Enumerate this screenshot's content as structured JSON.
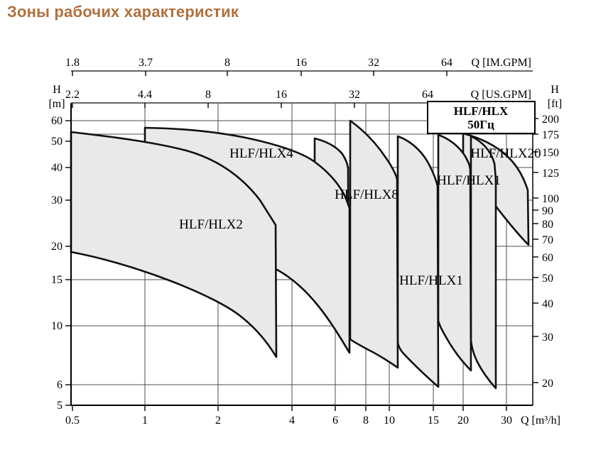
{
  "page_title": "Зоны рабочих характеристик",
  "chart_data": {
    "type": "area",
    "title": "HLF/HLX 50Гц",
    "grid": true,
    "x_axis_bottom": {
      "label": "Q [m³/h]",
      "scale": "log",
      "ticks": [
        "0.5",
        "1",
        "2",
        "4",
        "6",
        "8",
        "10",
        "15",
        "20",
        "30"
      ],
      "range": [
        0.5,
        38
      ]
    },
    "x_axis_top_imperial": {
      "label": "Q [IM.GPM]",
      "ticks": [
        "1.8",
        "3.7",
        "8",
        "16",
        "32",
        "64"
      ]
    },
    "x_axis_top_us": {
      "label": "Q [US.GPM]",
      "ticks": [
        "2.2",
        "4.4",
        "8",
        "16",
        "32",
        "64"
      ]
    },
    "y_axis_left": {
      "label_line1": "H",
      "label_line2": "[m]",
      "scale": "log",
      "ticks": [
        "60",
        "50",
        "40",
        "30",
        "20",
        "15",
        "10",
        "6",
        "5"
      ],
      "range": [
        5,
        65
      ]
    },
    "y_axis_right": {
      "label_line1": "H",
      "label_line2": "[ft]",
      "ticks": [
        "200",
        "175",
        "150",
        "125",
        "100",
        "90",
        "80",
        "70",
        "60",
        "50",
        "40",
        "30",
        "20"
      ]
    },
    "legend_box": {
      "line1": "HLF/HLX",
      "line2": "50Гц"
    },
    "zones": [
      {
        "label": "HLF/HLX2",
        "q_range_m3h": [
          0.5,
          3.5
        ],
        "h_top_m": [
          53,
          24
        ],
        "h_bottom_m": [
          19,
          7.7
        ]
      },
      {
        "label": "HLF/HLX4",
        "q_range_m3h": [
          1,
          7
        ],
        "h_top_m": [
          56,
          26
        ],
        "h_bottom_m": [
          16,
          8
        ]
      },
      {
        "label": "",
        "q_range_m3h": [
          5,
          7
        ],
        "h_top_m": [
          51,
          40
        ],
        "h_bottom_m": [
          13,
          9
        ]
      },
      {
        "label": "HLF/HLX8",
        "q_range_m3h": [
          7,
          11
        ],
        "h_top_m": [
          60.5,
          36
        ],
        "h_bottom_m": [
          9.1,
          6.9
        ]
      },
      {
        "label": "HLF/HLX1",
        "q_range_m3h": [
          11,
          16
        ],
        "h_top_m": [
          53,
          34
        ],
        "h_bottom_m": [
          8.5,
          5.9
        ]
      },
      {
        "label": "HLF/HLX1",
        "q_range_m3h": [
          16,
          22
        ],
        "h_top_m": [
          53,
          33
        ],
        "h_bottom_m": [
          8.1,
          6.8
        ]
      },
      {
        "label": "",
        "q_range_m3h": [
          22,
          27.8
        ],
        "h_top_m": [
          53,
          35
        ],
        "h_bottom_m": [
          7.5,
          5.8
        ]
      },
      {
        "label": "HLF/HLX20",
        "q_range_m3h": [
          20.5,
          37.7
        ],
        "h_top_m": [
          53,
          32
        ],
        "h_bottom_m": [
          39,
          20
        ]
      }
    ]
  },
  "colors": {
    "title": "#b0703d",
    "zone_fill": "#e9e9e9",
    "zone_stroke": "#111111",
    "grid": "#4d4d4d",
    "axis": "#000000",
    "top_axis": "#666666"
  }
}
